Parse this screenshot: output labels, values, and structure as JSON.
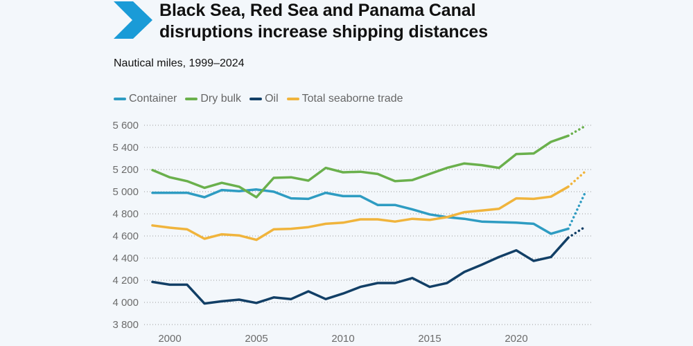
{
  "header": {
    "title_line1": "Black Sea, Red Sea and Panama Canal",
    "title_line2": "disruptions increase shipping distances",
    "subtitle": "Nautical miles, 1999–2024",
    "icon": "chevron-right-icon",
    "accent_color": "#1a9bd7"
  },
  "chart_data": {
    "type": "line",
    "title": "Black Sea, Red Sea and Panama Canal disruptions increase shipping distances",
    "subtitle": "Nautical miles, 1999–2024",
    "xlabel": "",
    "ylabel": "Nautical miles",
    "x": [
      1999,
      2000,
      2001,
      2002,
      2003,
      2004,
      2005,
      2006,
      2007,
      2008,
      2009,
      2010,
      2011,
      2012,
      2013,
      2014,
      2015,
      2016,
      2017,
      2018,
      2019,
      2020,
      2021,
      2022,
      2023,
      2024
    ],
    "xlim": [
      1999,
      2024
    ],
    "ylim": [
      3800,
      5600
    ],
    "x_ticks": [
      2000,
      2005,
      2010,
      2015,
      2020
    ],
    "x_tick_labels": [
      "2000",
      "2005",
      "2010",
      "2015",
      "2020"
    ],
    "y_ticks": [
      3800,
      4000,
      4200,
      4400,
      4600,
      4800,
      5000,
      5200,
      5400,
      5600
    ],
    "y_tick_labels": [
      "3 800",
      "4 000",
      "4 200",
      "4 400",
      "4 600",
      "4 800",
      "5 000",
      "5 200",
      "5 400",
      "5 600"
    ],
    "grid": "horizontal-dotted",
    "legend_position": "top-left",
    "projected_from": 2023,
    "projection_note": "2023–2024 segment drawn dotted",
    "series": [
      {
        "name": "Container",
        "color": "#2e9cc2",
        "values": [
          4990,
          4990,
          4990,
          4950,
          5015,
          5005,
          5020,
          5000,
          4940,
          4935,
          4990,
          4960,
          4960,
          4880,
          4880,
          4840,
          4795,
          4770,
          4755,
          4730,
          4725,
          4720,
          4710,
          4620,
          4665,
          5000
        ]
      },
      {
        "name": "Dry bulk",
        "color": "#6ab04c",
        "values": [
          5195,
          5130,
          5095,
          5035,
          5080,
          5045,
          4950,
          5125,
          5130,
          5100,
          5215,
          5175,
          5180,
          5160,
          5095,
          5105,
          5160,
          5215,
          5255,
          5240,
          5215,
          5340,
          5345,
          5450,
          5505,
          5595
        ]
      },
      {
        "name": "Oil",
        "color": "#123f66",
        "values": [
          4185,
          4160,
          4160,
          3990,
          4010,
          4025,
          3995,
          4045,
          4030,
          4100,
          4030,
          4080,
          4140,
          4175,
          4175,
          4220,
          4140,
          4175,
          4275,
          4340,
          4410,
          4470,
          4375,
          4410,
          4585,
          4685
        ]
      },
      {
        "name": "Total seaborne trade",
        "color": "#f0b43c",
        "values": [
          4695,
          4675,
          4660,
          4575,
          4615,
          4605,
          4565,
          4660,
          4665,
          4680,
          4710,
          4720,
          4750,
          4750,
          4730,
          4755,
          4745,
          4770,
          4815,
          4830,
          4845,
          4940,
          4935,
          4955,
          5045,
          5185
        ]
      }
    ]
  }
}
